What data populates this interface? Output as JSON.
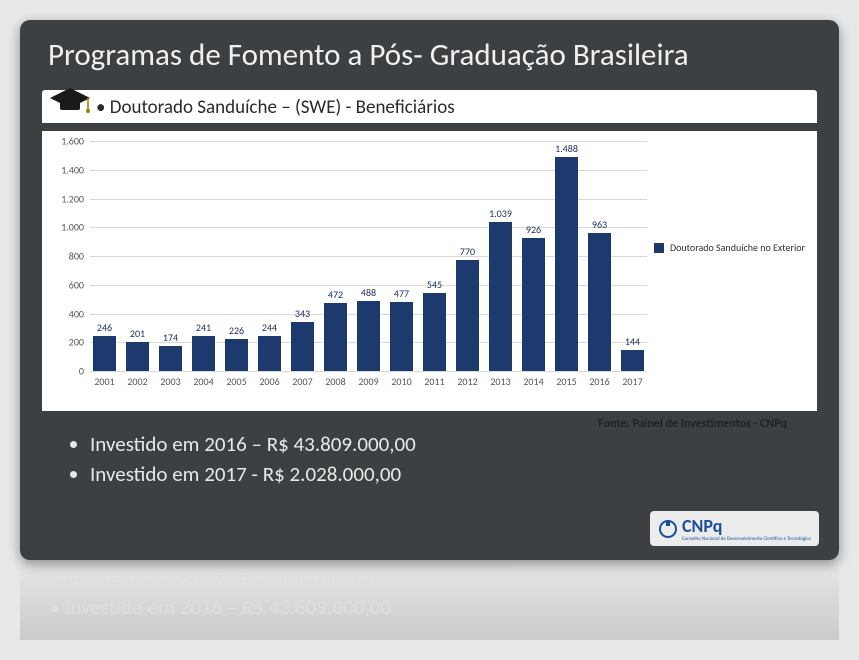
{
  "title": "Programas de Fomento a Pós- Graduação Brasileira",
  "subtitle": "Doutorado Sanduíche – (SWE) - Beneficiários",
  "chart": {
    "type": "bar",
    "categories": [
      "2001",
      "2002",
      "2003",
      "2004",
      "2005",
      "2006",
      "2007",
      "2008",
      "2009",
      "2010",
      "2011",
      "2012",
      "2013",
      "2014",
      "2015",
      "2016",
      "2017"
    ],
    "values": [
      246,
      201,
      174,
      241,
      226,
      244,
      343,
      472,
      488,
      477,
      545,
      770,
      1039,
      926,
      1488,
      963,
      144
    ],
    "value_labels": [
      "246",
      "201",
      "174",
      "241",
      "226",
      "244",
      "343",
      "472",
      "488",
      "477",
      "545",
      "770",
      "1.039",
      "926",
      "1.488",
      "963",
      "144"
    ],
    "bar_color": "#1d3a6e",
    "background_color": "#ffffff",
    "grid_color": "#d9d9d9",
    "ylim": [
      0,
      1600
    ],
    "yticks": [
      0,
      200,
      400,
      600,
      800,
      1000,
      1200,
      1400,
      1600
    ],
    "ytick_labels": [
      "0",
      "200",
      "400",
      "600",
      "800",
      "1.000",
      "1.200",
      "1.400",
      "1.600"
    ],
    "legend_label": "Doutorado Sanduíche no Exterior",
    "label_fontsize": 10,
    "title_fontsize": 19,
    "source": "Fonte: Painel de Investimentos - CNPq"
  },
  "bullets": [
    "Investido em 2016 – R$ 43.809.000,00",
    "Investido em 2017 - R$ 2.028.000,00"
  ],
  "logo": {
    "text": "CNPq",
    "subtitle": "Conselho Nacional de Desenvolvimento Científico e Tecnológico"
  },
  "colors": {
    "slide_bg": "#3c4043",
    "title_text": "#f0f0f0",
    "body_text": "#e8e8e8",
    "panel_bg": "#ffffff",
    "bullet_color": "#e8e8e8"
  }
}
